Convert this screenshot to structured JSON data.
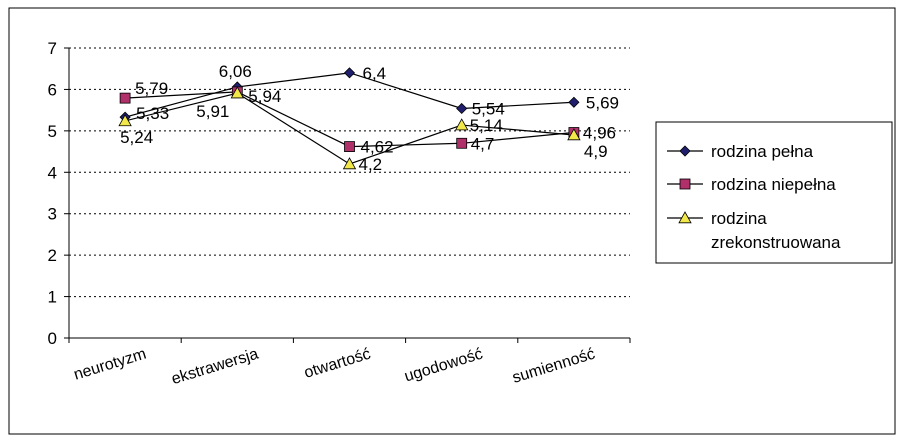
{
  "chart_data": {
    "type": "line",
    "title": "",
    "xlabel": "",
    "ylabel": "",
    "ylim": [
      0,
      7
    ],
    "yticks": [
      0,
      1,
      2,
      3,
      4,
      5,
      6,
      7
    ],
    "ytick_labels": [
      "0",
      "1",
      "2",
      "3",
      "4",
      "5",
      "6",
      "7"
    ],
    "grid": "horizontal dotted",
    "legend_position": "right",
    "categories": [
      "neurotyzm",
      "ekstrawersja",
      "otwartość",
      "ugodowość",
      "sumienność"
    ],
    "series": [
      {
        "name": "rodzina pełna",
        "values": [
          5.33,
          6.06,
          6.4,
          5.54,
          5.69
        ],
        "labels": [
          "5,33",
          "6,06",
          "6,4",
          "5,54",
          "5,69"
        ],
        "marker": "diamond",
        "color": "#1f1f6e"
      },
      {
        "name": "rodzina niepełna",
        "values": [
          5.79,
          5.94,
          4.62,
          4.7,
          4.96
        ],
        "labels": [
          "5,79",
          "5,94",
          "4,62",
          "4,7",
          "4,96"
        ],
        "marker": "square",
        "color": "#b0306a"
      },
      {
        "name": "rodzina zrekonstruowana",
        "legend_lines": [
          "rodzina",
          "zrekonstruowana"
        ],
        "values": [
          5.24,
          5.91,
          4.2,
          5.14,
          4.9
        ],
        "labels": [
          "5,24",
          "5,91",
          "4,2",
          "5,14",
          "4,9"
        ],
        "marker": "triangle",
        "color": "#f2e84a"
      }
    ]
  }
}
